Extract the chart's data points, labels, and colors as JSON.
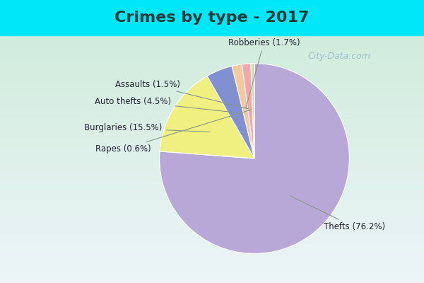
{
  "title": "Crimes by type - 2017",
  "labels": [
    "Thefts",
    "Burglaries",
    "Auto thefts",
    "Robberies",
    "Assaults",
    "Rapes"
  ],
  "values": [
    76.2,
    15.5,
    4.5,
    1.7,
    1.5,
    0.6
  ],
  "colors": [
    "#b8a8d8",
    "#f0f080",
    "#8090d0",
    "#f5c8a0",
    "#f0a8a8",
    "#c8ddb0"
  ],
  "label_texts": [
    "Thefts (76.2%)",
    "Burglaries (15.5%)",
    "Auto thefts (4.5%)",
    "Robberies (1.7%)",
    "Assaults (1.5%)",
    "Rapes (0.6%)"
  ],
  "bg_cyan": "#00e8f8",
  "title_color": "#1a3a3a",
  "label_color": "#222233",
  "title_fontsize": 16,
  "label_fontsize": 8.5,
  "watermark": "City-Data.com",
  "watermark_color": "#9ab8c8",
  "startangle": 90
}
